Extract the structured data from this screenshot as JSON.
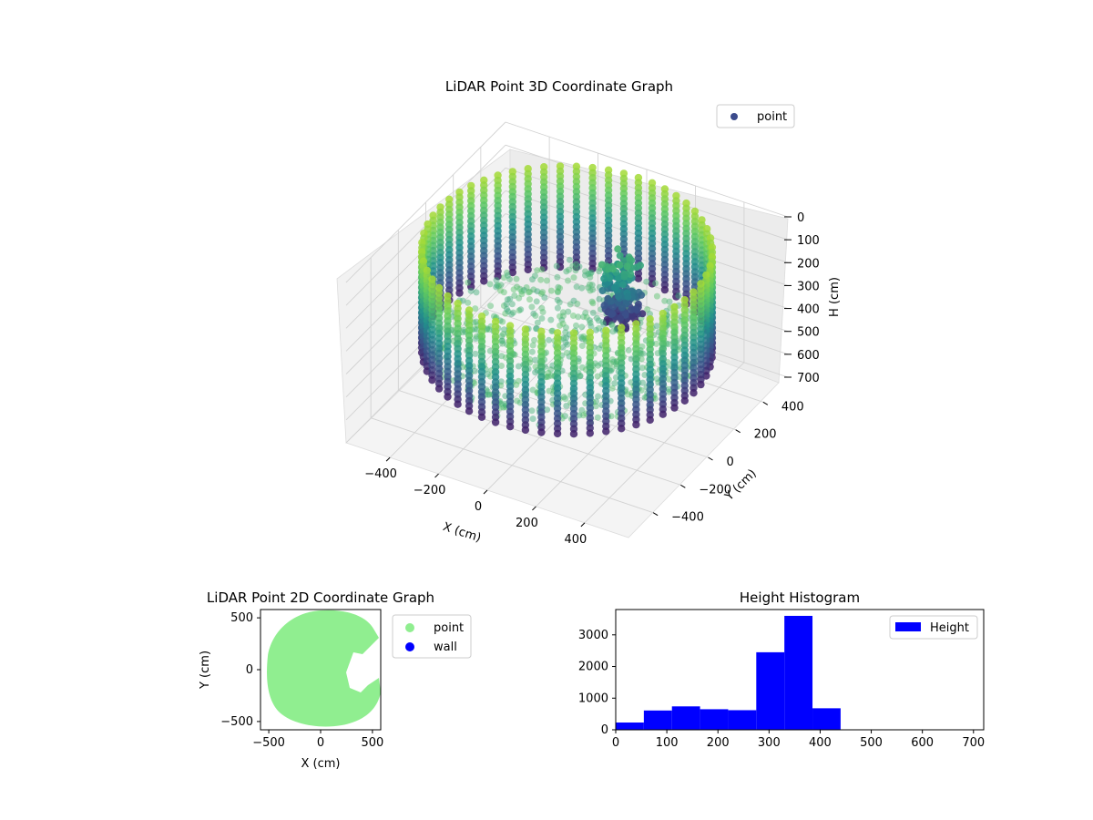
{
  "chart_data": [
    {
      "type": "scatter",
      "projection": "3d",
      "title": "LiDAR Point 3D Coordinate Graph",
      "xlabel": "X (cm)",
      "ylabel": "Y (cm)",
      "zlabel": "H (cm)",
      "xticks": [
        "−400",
        "−200",
        "0",
        "200",
        "400"
      ],
      "yticks": [
        "−400",
        "−200",
        "0",
        "200",
        "400"
      ],
      "zticks": [
        "0",
        "100",
        "200",
        "300",
        "400",
        "500",
        "600",
        "700"
      ],
      "xlim": [
        -580,
        580
      ],
      "ylim": [
        -580,
        580
      ],
      "zlim": [
        0,
        700
      ],
      "zaxis_inverted": true,
      "legend": {
        "position": "top-right",
        "entries": [
          {
            "label": "point",
            "color": "#3b4b8c"
          }
        ]
      },
      "colormap": "viridis",
      "grid": true,
      "wall": {
        "shape": "ring",
        "radius_cm": 520,
        "height_range": [
          0,
          440
        ],
        "columns": 56
      },
      "interior_points": "dense cluster around origin from ~0 to ~440 cm height"
    },
    {
      "type": "scatter",
      "title": "LiDAR Point 2D Coordinate Graph",
      "xlabel": "X (cm)",
      "ylabel": "Y (cm)",
      "xticks": [
        "−500",
        "0",
        "500"
      ],
      "yticks": [
        "−500",
        "0",
        "500"
      ],
      "xlim": [
        -580,
        580
      ],
      "ylim": [
        -580,
        580
      ],
      "legend": {
        "position": "outside-right",
        "entries": [
          {
            "label": "point",
            "color": "#90ee90"
          },
          {
            "label": "wall",
            "color": "#0000ff"
          }
        ]
      }
    },
    {
      "type": "bar",
      "title": "Height Histogram",
      "xticks": [
        "0",
        "100",
        "200",
        "300",
        "400",
        "500",
        "600",
        "700"
      ],
      "yticks": [
        "0",
        "1000",
        "2000",
        "3000"
      ],
      "xlim": [
        0,
        720
      ],
      "ylim": [
        0,
        3800
      ],
      "bin_width": 55,
      "bins": [
        0,
        55,
        110,
        165,
        220,
        275,
        330,
        385
      ],
      "values": [
        230,
        610,
        740,
        650,
        620,
        2450,
        3600,
        680
      ],
      "color": "#0000ff",
      "legend": {
        "position": "top-right",
        "entries": [
          {
            "label": "Height",
            "color": "#0000ff"
          }
        ]
      }
    }
  ]
}
